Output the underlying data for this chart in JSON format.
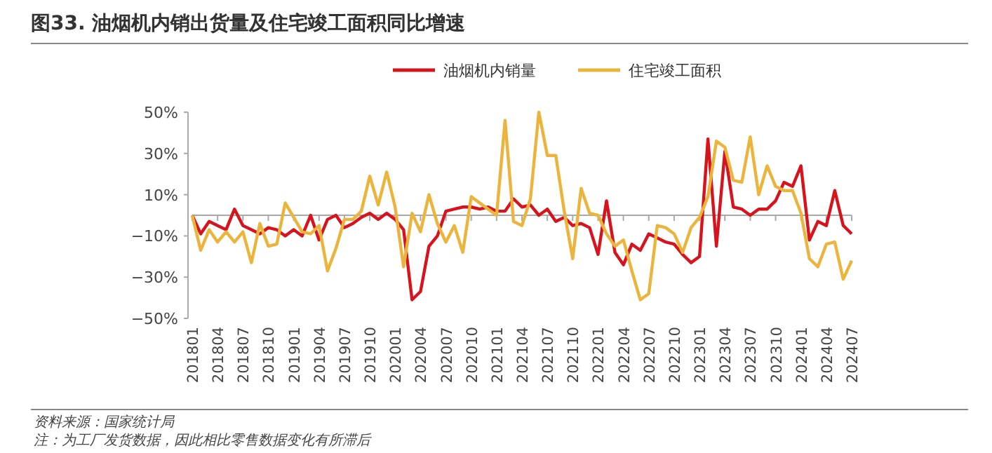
{
  "chart_data": {
    "type": "line",
    "title": "图33. 油烟机内销出货量及住宅竣工面积同比增速",
    "categories": [
      "201801",
      null,
      null,
      "201804",
      null,
      null,
      "201807",
      null,
      null,
      "201810",
      null,
      null,
      "201901",
      null,
      null,
      "201904",
      null,
      null,
      "201907",
      null,
      null,
      "201910",
      null,
      null,
      "202001",
      null,
      null,
      "202004",
      null,
      null,
      "202007",
      null,
      null,
      "202010",
      null,
      null,
      "202101",
      null,
      null,
      "202104",
      null,
      null,
      "202107",
      null,
      null,
      "202110",
      null,
      null,
      "202201",
      null,
      null,
      "202204",
      null,
      null,
      "202207",
      null,
      null,
      "202210",
      null,
      null,
      "202301",
      null,
      null,
      "202304",
      null,
      null,
      "202307",
      null,
      null,
      "202310",
      null,
      null,
      "202401",
      null,
      null,
      "202404",
      null,
      null,
      "202407"
    ],
    "series": [
      {
        "name": "油烟机内销量",
        "color": "#d7141e",
        "values": [
          0,
          -9,
          -3,
          -5,
          -7,
          3,
          -5,
          -7,
          -9,
          -6,
          -7,
          -10,
          -7,
          -10,
          0,
          -12,
          -2,
          0,
          -6,
          -4,
          -1,
          1,
          -2,
          1,
          -2,
          -7,
          -41,
          -37,
          -15,
          -10,
          2,
          3,
          4,
          4,
          3,
          4,
          2,
          2,
          8,
          4,
          5,
          0,
          3,
          -3,
          -1,
          -5,
          -4,
          -6,
          -19,
          7,
          -18,
          -24,
          -14,
          -17,
          -9,
          -11,
          -13,
          -14,
          -19,
          -23,
          -20,
          37,
          -15,
          31,
          4,
          3,
          0,
          3,
          3,
          7,
          16,
          14,
          24,
          -12,
          -3,
          -5,
          12,
          -5,
          -9
        ]
      },
      {
        "name": "住宅竣工面积",
        "color": "#ecb43c",
        "values": [
          0,
          -17,
          -7,
          -13,
          -8,
          -13,
          -8,
          -23,
          -4,
          -15,
          -14,
          6,
          -1,
          -8,
          -9,
          -5,
          -27,
          -16,
          -2,
          -2,
          2,
          19,
          5,
          21,
          4,
          -25,
          1,
          -8,
          10,
          -4,
          -13,
          -5,
          -18,
          9,
          6,
          3,
          0,
          46,
          -3,
          -5,
          8,
          50,
          29,
          29,
          2,
          -21,
          13,
          1,
          0,
          -9,
          -15,
          -12,
          -27,
          -41,
          -38,
          -5,
          -6,
          -9,
          -18,
          -6,
          -1,
          9,
          36,
          33,
          17,
          16,
          38,
          10,
          24,
          14,
          12,
          12,
          1,
          -21,
          -25,
          -14,
          -13,
          -31,
          -22
        ]
      }
    ],
    "ylim": [
      -50,
      50
    ],
    "yticks": [
      {
        "value": 50,
        "label": "50%"
      },
      {
        "value": 30,
        "label": "30%"
      },
      {
        "value": 10,
        "label": "10%"
      },
      {
        "value": -10,
        "label": "−10%"
      },
      {
        "value": -30,
        "label": "−30%"
      },
      {
        "value": -50,
        "label": "−50%"
      }
    ],
    "legend": "top",
    "marker": "none",
    "line_style": "solid",
    "grid": false,
    "annotations": [
      "资料来源：国家统计局",
      "注：为工厂发货数据，因此相比零售数据变化有所滞后"
    ]
  }
}
